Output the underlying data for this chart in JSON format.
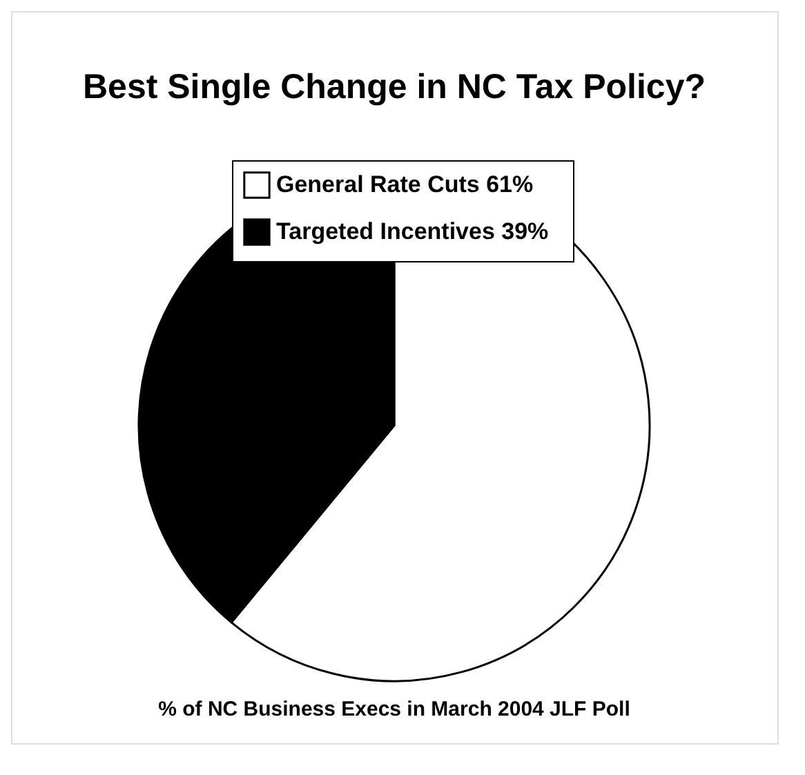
{
  "chart_data": {
    "type": "pie",
    "title": "Best Single Change in NC Tax Policy?",
    "categories": [
      "General Rate Cuts",
      "Targeted Incentives"
    ],
    "values": [
      61,
      39
    ],
    "colors": [
      "#ffffff",
      "#000000"
    ],
    "value_labels": [
      "61%",
      "39%"
    ],
    "legend": "top right",
    "annotations": [
      "% of NC Business Execs in March 2004 JLF Poll"
    ]
  }
}
